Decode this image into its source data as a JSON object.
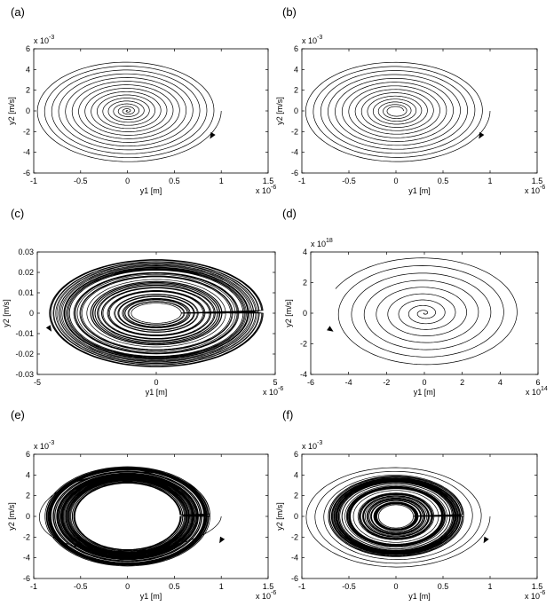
{
  "figure": {
    "panels": [
      {
        "label": "(a)",
        "xlabel": "y1 [m]",
        "ylabel": "y2 [m/s]",
        "x_multiplier": "x 10",
        "x_exp": "-6",
        "y_multiplier": "x 10",
        "y_exp": "-3"
      },
      {
        "label": "(b)",
        "xlabel": "y1 [m]",
        "ylabel": "y2 [m/s]",
        "x_multiplier": "x 10",
        "x_exp": "-6",
        "y_multiplier": "x 10",
        "y_exp": "-3"
      },
      {
        "label": "(c)",
        "xlabel": "y1 [m]",
        "ylabel": "y2 [m/s]",
        "x_multiplier": "x 10",
        "x_exp": "-6",
        "y_multiplier": "",
        "y_exp": ""
      },
      {
        "label": "(d)",
        "xlabel": "y1 [m]",
        "ylabel": "y2 [m/s]",
        "x_multiplier": "x 10",
        "x_exp": "14",
        "y_multiplier": "x 10",
        "y_exp": "18"
      },
      {
        "label": "(e)",
        "xlabel": "y1 [m]",
        "ylabel": "y2 [m/s]",
        "x_multiplier": "x 10",
        "x_exp": "-6",
        "y_multiplier": "x 10",
        "y_exp": "-3"
      },
      {
        "label": "(f)",
        "xlabel": "y1 [m]",
        "ylabel": "y2 [m/s]",
        "x_multiplier": "x 10",
        "x_exp": "-6",
        "y_multiplier": "x 10",
        "y_exp": "-3"
      }
    ]
  },
  "chart_data": [
    {
      "type": "line",
      "panel": "(a)",
      "xlabel": "y1 [m]",
      "ylabel": "y2 [m/s]",
      "xlim": [
        -1,
        1.5
      ],
      "ylim": [
        -6,
        6
      ],
      "xticks": [
        "-1",
        "-0.5",
        "0",
        "0.5",
        "1",
        "1.5"
      ],
      "yticks": [
        "-6",
        "-4",
        "-2",
        "0",
        "2",
        "4",
        "6"
      ],
      "trajectory": {
        "kind": "inward_spiral",
        "start": [
          1.0,
          0.0
        ],
        "start_radius_x": 1.0,
        "start_radius_y": 5.0,
        "end_radius_fraction": 0.0,
        "turns": 16,
        "arrow_at": [
          0.88,
          -2.7
        ]
      }
    },
    {
      "type": "line",
      "panel": "(b)",
      "xlabel": "y1 [m]",
      "ylabel": "y2 [m/s]",
      "xlim": [
        -1,
        1.5
      ],
      "ylim": [
        -6,
        6
      ],
      "xticks": [
        "-1",
        "-0.5",
        "0",
        "0.5",
        "1",
        "1.5"
      ],
      "yticks": [
        "-6",
        "-4",
        "-2",
        "0",
        "2",
        "4",
        "6"
      ],
      "trajectory": {
        "kind": "inward_spiral",
        "start": [
          1.0,
          0.0
        ],
        "start_radius_x": 1.0,
        "start_radius_y": 5.0,
        "end_radius_fraction": 0.08,
        "turns": 14,
        "arrow_at": [
          0.88,
          -2.7
        ]
      }
    },
    {
      "type": "line",
      "panel": "(c)",
      "xlabel": "y1 [m]",
      "ylabel": "y2 [m/s]",
      "xlim": [
        -5,
        5
      ],
      "ylim": [
        -0.03,
        0.03
      ],
      "xticks": [
        "-5",
        "0",
        "5"
      ],
      "yticks": [
        "-0.03",
        "-0.02",
        "-0.01",
        "0",
        "0.01",
        "0.02",
        "0.03"
      ],
      "trajectory": {
        "kind": "dense_band",
        "inner_radius_x": 0.9,
        "inner_radius_y": 0.004,
        "outer_radius_x": 4.6,
        "outer_radius_y": 0.027,
        "turns": 60,
        "arrow_at": [
          -4.4,
          -0.009
        ]
      }
    },
    {
      "type": "line",
      "panel": "(d)",
      "xlabel": "y1 [m]",
      "ylabel": "y2 [m/s]",
      "xlim": [
        -6,
        6
      ],
      "ylim": [
        -4,
        4
      ],
      "xticks": [
        "-6",
        "-4",
        "-2",
        "0",
        "2",
        "4",
        "6"
      ],
      "yticks": [
        "-4",
        "-2",
        "0",
        "2",
        "4"
      ],
      "trajectory": {
        "kind": "inward_spiral",
        "start": [
          -5.3,
          1.8
        ],
        "start_radius_x": 5.2,
        "start_radius_y": 3.7,
        "end_radius_fraction": 0.0,
        "turns": 9,
        "arrow_at": [
          -4.8,
          -1.2
        ]
      }
    },
    {
      "type": "line",
      "panel": "(e)",
      "xlabel": "y1 [m]",
      "ylabel": "y2 [m/s]",
      "xlim": [
        -1,
        1.5
      ],
      "ylim": [
        -6,
        6
      ],
      "xticks": [
        "-1",
        "-0.5",
        "0",
        "0.5",
        "1",
        "1.5"
      ],
      "yticks": [
        "-6",
        "-4",
        "-2",
        "0",
        "2",
        "4",
        "6"
      ],
      "trajectory": {
        "kind": "dense_band",
        "inner_radius_x": 0.56,
        "inner_radius_y": 3.2,
        "outer_radius_x": 0.88,
        "outer_radius_y": 4.8,
        "turns": 70,
        "start": [
          1.0,
          0.0
        ],
        "arrow_at": [
          0.98,
          -2.6
        ]
      }
    },
    {
      "type": "line",
      "panel": "(f)",
      "xlabel": "y1 [m]",
      "ylabel": "y2 [m/s]",
      "xlim": [
        -1,
        1.5
      ],
      "ylim": [
        -6,
        6
      ],
      "xticks": [
        "-1",
        "-0.5",
        "0",
        "0.5",
        "1",
        "1.5"
      ],
      "yticks": [
        "-6",
        "-4",
        "-2",
        "0",
        "2",
        "4",
        "6"
      ],
      "trajectory": {
        "kind": "dense_band",
        "inner_radius_x": 0.18,
        "inner_radius_y": 1.1,
        "outer_radius_x": 0.72,
        "outer_radius_y": 3.9,
        "turns": 70,
        "outer_loops": 3,
        "start": [
          1.0,
          0.0
        ],
        "arrow_at": [
          0.93,
          -2.6
        ]
      }
    }
  ]
}
